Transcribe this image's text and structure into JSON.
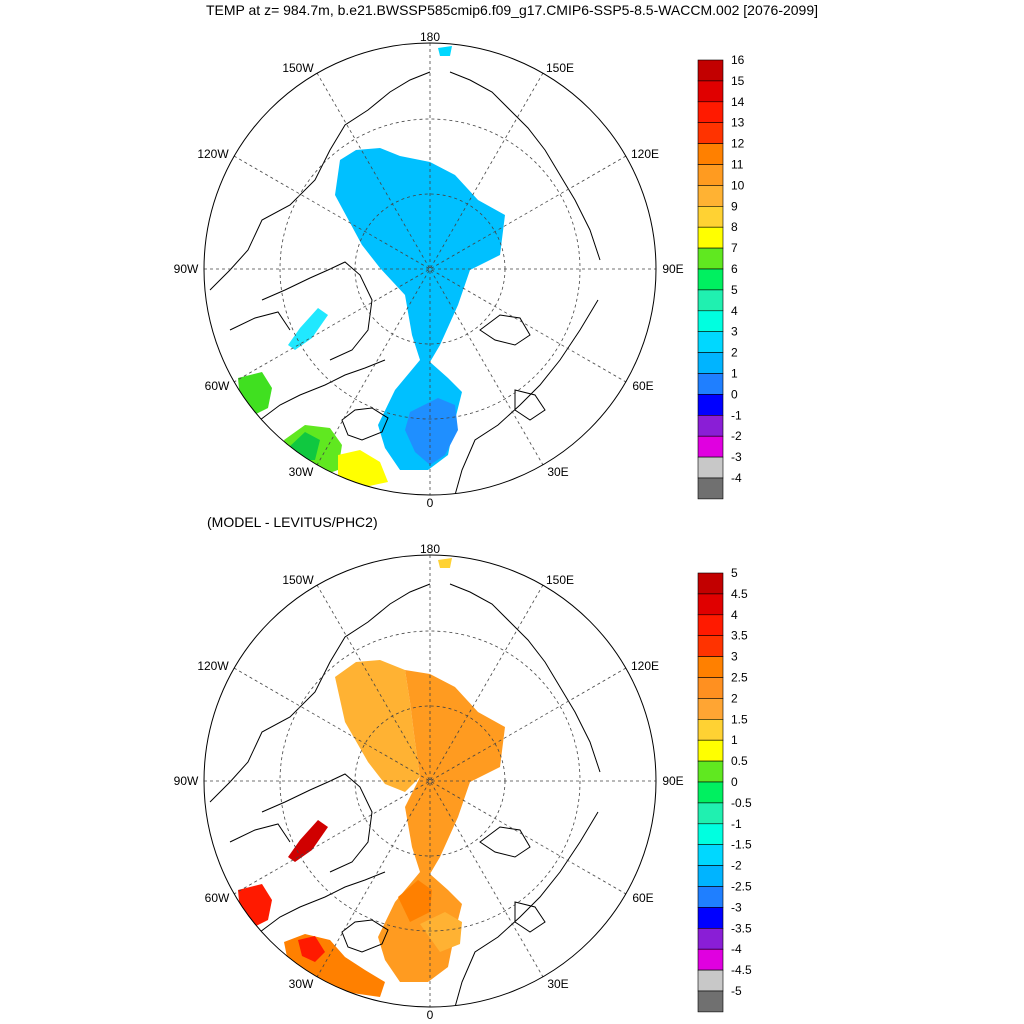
{
  "title": "TEMP at z= 984.7m, b.e21.BWSSP585cmip6.f09_g17.CMIP6-SSP5-8.5-WACCM.002 [2076-2099]",
  "subtitle": "(MODEL - LEVITUS/PHC2)",
  "lon_labels": {
    "top": "180",
    "bottom": "0",
    "l150": "150W",
    "l120": "120W",
    "l90": "90W",
    "l60": "60W",
    "l30": "30W",
    "r150": "150E",
    "r120": "120E",
    "r90": "90E",
    "r60": "60E",
    "r30": "30E"
  },
  "top_map": {
    "variable": "TEMP",
    "colorbar_labels": [
      "16",
      "15",
      "14",
      "13",
      "12",
      "11",
      "10",
      "9",
      "8",
      "7",
      "6",
      "5",
      "4",
      "3",
      "2",
      "1",
      "0",
      "-1",
      "-2",
      "-3",
      "-4"
    ],
    "colors": [
      "#c20000",
      "#e00000",
      "#ff1a00",
      "#ff3300",
      "#ff8000",
      "#ff9b20",
      "#ffb233",
      "#ffd233",
      "#ffff00",
      "#60e820",
      "#00f060",
      "#20f0b0",
      "#00ffe0",
      "#00d8ff",
      "#00b4ff",
      "#1f7fff",
      "#0000ff",
      "#8a1ed6",
      "#e000e0",
      "#c8c8c8",
      "#707070"
    ]
  },
  "bottom_map": {
    "variable": "TEMP difference",
    "colorbar_labels": [
      "5",
      "4.5",
      "4",
      "3.5",
      "3",
      "2.5",
      "2",
      "1.5",
      "1",
      "0.5",
      "0",
      "-0.5",
      "-1",
      "-1.5",
      "-2",
      "-2.5",
      "-3",
      "-3.5",
      "-4",
      "-4.5",
      "-5"
    ],
    "colors": [
      "#c20000",
      "#e00000",
      "#ff1a00",
      "#ff3300",
      "#ff8000",
      "#ff9020",
      "#ffa533",
      "#ffd233",
      "#ffff00",
      "#60e820",
      "#00f060",
      "#20f0b0",
      "#00ffe0",
      "#00d8ff",
      "#00b4ff",
      "#1f7fff",
      "#0000ff",
      "#8a1ed6",
      "#e000e0",
      "#c8c8c8",
      "#707070"
    ]
  }
}
